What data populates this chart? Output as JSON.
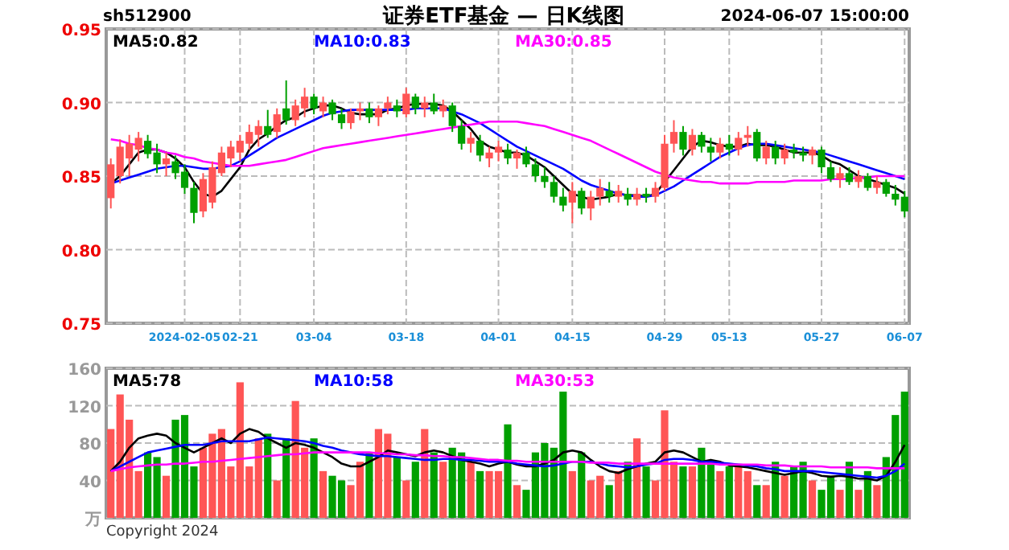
{
  "chart_data": [
    {
      "type": "candlestick",
      "title": "证券ETF基金 — 日K线图",
      "annotations": [
        "sh512900",
        "2024-06-07 15:00:00"
      ],
      "categories": [
        null,
        null,
        null,
        null,
        null,
        null,
        null,
        null,
        "2024-02-05",
        null,
        null,
        null,
        null,
        null,
        "02-21",
        null,
        null,
        null,
        null,
        null,
        null,
        null,
        "03-04",
        null,
        null,
        null,
        null,
        null,
        null,
        null,
        null,
        null,
        "03-18",
        null,
        null,
        null,
        null,
        null,
        null,
        null,
        null,
        null,
        "04-01",
        null,
        null,
        null,
        null,
        null,
        null,
        null,
        "04-15",
        null,
        null,
        null,
        null,
        null,
        null,
        null,
        null,
        null,
        "04-29",
        null,
        null,
        null,
        null,
        null,
        null,
        "05-13",
        null,
        null,
        null,
        null,
        null,
        null,
        null,
        null,
        null,
        "05-27",
        null,
        null,
        null,
        null,
        null,
        null,
        null,
        null,
        "06-07"
      ],
      "ohlc": [
        [
          0.835,
          0.862,
          0.828,
          0.858
        ],
        [
          0.85,
          0.875,
          0.845,
          0.87
        ],
        [
          0.862,
          0.878,
          0.85,
          0.872
        ],
        [
          0.868,
          0.88,
          0.86,
          0.876
        ],
        [
          0.874,
          0.878,
          0.862,
          0.865
        ],
        [
          0.866,
          0.872,
          0.852,
          0.858
        ],
        [
          0.858,
          0.866,
          0.85,
          0.862
        ],
        [
          0.86,
          0.864,
          0.848,
          0.852
        ],
        [
          0.853,
          0.858,
          0.838,
          0.842
        ],
        [
          0.842,
          0.846,
          0.818,
          0.825
        ],
        [
          0.826,
          0.852,
          0.822,
          0.848
        ],
        [
          0.832,
          0.86,
          0.828,
          0.856
        ],
        [
          0.852,
          0.87,
          0.85,
          0.866
        ],
        [
          0.862,
          0.874,
          0.856,
          0.87
        ],
        [
          0.866,
          0.878,
          0.86,
          0.874
        ],
        [
          0.872,
          0.885,
          0.868,
          0.88
        ],
        [
          0.878,
          0.888,
          0.87,
          0.884
        ],
        [
          0.884,
          0.895,
          0.876,
          0.878
        ],
        [
          0.88,
          0.896,
          0.876,
          0.892
        ],
        [
          0.896,
          0.915,
          0.885,
          0.888
        ],
        [
          0.888,
          0.902,
          0.884,
          0.898
        ],
        [
          0.896,
          0.91,
          0.89,
          0.904
        ],
        [
          0.904,
          0.906,
          0.892,
          0.896
        ],
        [
          0.894,
          0.904,
          0.89,
          0.9
        ],
        [
          0.9,
          0.902,
          0.888,
          0.892
        ],
        [
          0.892,
          0.896,
          0.882,
          0.886
        ],
        [
          0.886,
          0.896,
          0.882,
          0.894
        ],
        [
          0.894,
          0.9,
          0.888,
          0.896
        ],
        [
          0.896,
          0.9,
          0.886,
          0.89
        ],
        [
          0.89,
          0.898,
          0.884,
          0.896
        ],
        [
          0.896,
          0.904,
          0.892,
          0.9
        ],
        [
          0.898,
          0.902,
          0.89,
          0.894
        ],
        [
          0.892,
          0.91,
          0.89,
          0.906
        ],
        [
          0.904,
          0.906,
          0.892,
          0.896
        ],
        [
          0.896,
          0.904,
          0.89,
          0.9
        ],
        [
          0.9,
          0.906,
          0.892,
          0.894
        ],
        [
          0.894,
          0.902,
          0.89,
          0.898
        ],
        [
          0.898,
          0.9,
          0.88,
          0.884
        ],
        [
          0.884,
          0.888,
          0.868,
          0.872
        ],
        [
          0.872,
          0.88,
          0.866,
          0.876
        ],
        [
          0.874,
          0.878,
          0.86,
          0.864
        ],
        [
          0.862,
          0.87,
          0.856,
          0.866
        ],
        [
          0.866,
          0.874,
          0.86,
          0.87
        ],
        [
          0.868,
          0.872,
          0.858,
          0.862
        ],
        [
          0.862,
          0.868,
          0.855,
          0.866
        ],
        [
          0.866,
          0.87,
          0.856,
          0.858
        ],
        [
          0.858,
          0.862,
          0.846,
          0.85
        ],
        [
          0.85,
          0.856,
          0.842,
          0.846
        ],
        [
          0.846,
          0.85,
          0.832,
          0.836
        ],
        [
          0.836,
          0.842,
          0.826,
          0.83
        ],
        [
          0.832,
          0.846,
          0.818,
          0.84
        ],
        [
          0.84,
          0.842,
          0.824,
          0.828
        ],
        [
          0.828,
          0.84,
          0.82,
          0.836
        ],
        [
          0.836,
          0.848,
          0.83,
          0.842
        ],
        [
          0.84,
          0.846,
          0.832,
          0.836
        ],
        [
          0.836,
          0.844,
          0.832,
          0.84
        ],
        [
          0.838,
          0.842,
          0.83,
          0.834
        ],
        [
          0.834,
          0.842,
          0.83,
          0.838
        ],
        [
          0.838,
          0.842,
          0.832,
          0.836
        ],
        [
          0.836,
          0.846,
          0.832,
          0.842
        ],
        [
          0.842,
          0.878,
          0.84,
          0.872
        ],
        [
          0.872,
          0.888,
          0.866,
          0.88
        ],
        [
          0.88,
          0.884,
          0.864,
          0.868
        ],
        [
          0.868,
          0.882,
          0.864,
          0.878
        ],
        [
          0.878,
          0.88,
          0.866,
          0.87
        ],
        [
          0.87,
          0.876,
          0.86,
          0.866
        ],
        [
          0.866,
          0.876,
          0.862,
          0.872
        ],
        [
          0.872,
          0.878,
          0.864,
          0.868
        ],
        [
          0.868,
          0.88,
          0.864,
          0.876
        ],
        [
          0.876,
          0.884,
          0.87,
          0.878
        ],
        [
          0.88,
          0.882,
          0.86,
          0.862
        ],
        [
          0.862,
          0.874,
          0.858,
          0.87
        ],
        [
          0.87,
          0.874,
          0.858,
          0.862
        ],
        [
          0.862,
          0.872,
          0.858,
          0.868
        ],
        [
          0.868,
          0.872,
          0.862,
          0.866
        ],
        [
          0.866,
          0.87,
          0.86,
          0.864
        ],
        [
          0.864,
          0.87,
          0.858,
          0.868
        ],
        [
          0.868,
          0.87,
          0.852,
          0.856
        ],
        [
          0.856,
          0.86,
          0.846,
          0.848
        ],
        [
          0.848,
          0.856,
          0.842,
          0.852
        ],
        [
          0.852,
          0.856,
          0.844,
          0.846
        ],
        [
          0.846,
          0.854,
          0.842,
          0.85
        ],
        [
          0.85,
          0.852,
          0.84,
          0.842
        ],
        [
          0.842,
          0.85,
          0.838,
          0.846
        ],
        [
          0.846,
          0.848,
          0.836,
          0.838
        ],
        [
          0.838,
          0.844,
          0.83,
          0.834
        ],
        [
          0.836,
          0.84,
          0.822,
          0.826
        ]
      ],
      "colors": [
        "#ff5555",
        "#ff5555",
        "#ff5555",
        "#ff5555",
        "#00a000",
        "#00a000",
        "#ff5555",
        "#00a000",
        "#00a000",
        "#00a000",
        "#ff5555",
        "#ff5555",
        "#ff5555",
        "#ff5555",
        "#ff5555",
        "#ff5555",
        "#ff5555",
        "#00a000",
        "#ff5555",
        "#00a000",
        "#ff5555",
        "#ff5555",
        "#00a000",
        "#ff5555",
        "#00a000",
        "#00a000",
        "#ff5555",
        "#ff5555",
        "#00a000",
        "#ff5555",
        "#ff5555",
        "#00a000",
        "#ff5555",
        "#00a000",
        "#ff5555",
        "#00a000",
        "#ff5555",
        "#00a000",
        "#00a000",
        "#ff5555",
        "#00a000",
        "#ff5555",
        "#ff5555",
        "#00a000",
        "#ff5555",
        "#00a000",
        "#00a000",
        "#00a000",
        "#00a000",
        "#00a000",
        "#ff5555",
        "#00a000",
        "#ff5555",
        "#ff5555",
        "#00a000",
        "#ff5555",
        "#00a000",
        "#ff5555",
        "#00a000",
        "#ff5555",
        "#ff5555",
        "#ff5555",
        "#00a000",
        "#ff5555",
        "#00a000",
        "#00a000",
        "#ff5555",
        "#00a000",
        "#ff5555",
        "#ff5555",
        "#00a000",
        "#ff5555",
        "#00a000",
        "#ff5555",
        "#00a000",
        "#00a000",
        "#ff5555",
        "#00a000",
        "#00a000",
        "#ff5555",
        "#00a000",
        "#ff5555",
        "#00a000",
        "#ff5555",
        "#00a000",
        "#00a000",
        "#00a000"
      ],
      "series": [
        {
          "type": "line",
          "name": "MA5:0.82",
          "color": "#000000",
          "values": [
            0.845,
            0.85,
            0.858,
            0.866,
            0.868,
            0.868,
            0.866,
            0.862,
            0.856,
            0.846,
            0.838,
            0.836,
            0.84,
            0.848,
            0.856,
            0.868,
            0.875,
            0.879,
            0.884,
            0.888,
            0.89,
            0.894,
            0.896,
            0.898,
            0.898,
            0.896,
            0.893,
            0.892,
            0.892,
            0.892,
            0.895,
            0.896,
            0.898,
            0.899,
            0.899,
            0.899,
            0.898,
            0.894,
            0.888,
            0.882,
            0.874,
            0.87,
            0.868,
            0.866,
            0.866,
            0.864,
            0.86,
            0.856,
            0.85,
            0.844,
            0.838,
            0.836,
            0.834,
            0.835,
            0.836,
            0.838,
            0.837,
            0.837,
            0.836,
            0.838,
            0.846,
            0.854,
            0.862,
            0.87,
            0.874,
            0.873,
            0.871,
            0.87,
            0.87,
            0.872,
            0.871,
            0.871,
            0.87,
            0.868,
            0.866,
            0.866,
            0.866,
            0.864,
            0.86,
            0.858,
            0.854,
            0.85,
            0.848,
            0.846,
            0.844,
            0.842,
            0.838
          ]
        },
        {
          "type": "line",
          "name": "MA10:0.83",
          "color": "#0000ff",
          "values": [
            0.845,
            0.847,
            0.849,
            0.851,
            0.853,
            0.855,
            0.856,
            0.857,
            0.857,
            0.856,
            0.855,
            0.855,
            0.856,
            0.857,
            0.86,
            0.864,
            0.868,
            0.872,
            0.876,
            0.879,
            0.882,
            0.885,
            0.888,
            0.891,
            0.893,
            0.894,
            0.895,
            0.895,
            0.895,
            0.895,
            0.895,
            0.895,
            0.895,
            0.896,
            0.896,
            0.896,
            0.896,
            0.894,
            0.892,
            0.889,
            0.886,
            0.882,
            0.878,
            0.874,
            0.87,
            0.867,
            0.864,
            0.861,
            0.858,
            0.855,
            0.851,
            0.847,
            0.844,
            0.842,
            0.84,
            0.838,
            0.837,
            0.836,
            0.836,
            0.837,
            0.84,
            0.843,
            0.847,
            0.851,
            0.855,
            0.859,
            0.863,
            0.866,
            0.869,
            0.871,
            0.872,
            0.872,
            0.871,
            0.87,
            0.869,
            0.868,
            0.867,
            0.866,
            0.864,
            0.862,
            0.86,
            0.858,
            0.856,
            0.854,
            0.852,
            0.85,
            0.848
          ]
        },
        {
          "type": "line",
          "name": "MA30:0.85",
          "color": "#ff00ff",
          "values": [
            0.875,
            0.874,
            0.872,
            0.871,
            0.869,
            0.868,
            0.866,
            0.865,
            0.863,
            0.862,
            0.86,
            0.859,
            0.858,
            0.857,
            0.857,
            0.857,
            0.858,
            0.859,
            0.86,
            0.861,
            0.863,
            0.865,
            0.867,
            0.869,
            0.87,
            0.871,
            0.872,
            0.873,
            0.874,
            0.875,
            0.876,
            0.877,
            0.878,
            0.879,
            0.88,
            0.881,
            0.882,
            0.883,
            0.884,
            0.885,
            0.886,
            0.887,
            0.887,
            0.887,
            0.887,
            0.886,
            0.885,
            0.884,
            0.882,
            0.88,
            0.878,
            0.876,
            0.874,
            0.871,
            0.868,
            0.865,
            0.862,
            0.859,
            0.856,
            0.853,
            0.851,
            0.849,
            0.848,
            0.847,
            0.846,
            0.846,
            0.845,
            0.845,
            0.845,
            0.845,
            0.846,
            0.846,
            0.846,
            0.846,
            0.847,
            0.847,
            0.847,
            0.847,
            0.848,
            0.848,
            0.848,
            0.849,
            0.849,
            0.85,
            0.85,
            0.85,
            0.85
          ]
        }
      ],
      "ylim": [
        0.75,
        0.95
      ],
      "yticks": [
        {
          "value": 0.75,
          "label": "0.75"
        },
        {
          "value": 0.8,
          "label": "0.80"
        },
        {
          "value": 0.85,
          "label": "0.85"
        },
        {
          "value": 0.9,
          "label": "0.90"
        },
        {
          "value": 0.95,
          "label": "0.95"
        }
      ],
      "grid": true,
      "legend": "top"
    },
    {
      "type": "bar",
      "annotations": [
        "Copyright 2024"
      ],
      "tick_labels": "y",
      "categories": [
        null,
        null,
        null,
        null,
        null,
        null,
        null,
        null,
        null,
        null,
        null,
        null,
        null,
        null,
        null,
        null,
        null,
        null,
        null,
        null,
        null,
        null,
        null,
        null,
        null,
        null,
        null,
        null,
        null,
        null,
        null,
        null,
        null,
        null,
        null,
        null,
        null,
        null,
        null,
        null,
        null,
        null,
        null,
        null,
        null,
        null,
        null,
        null,
        null,
        null,
        null,
        null,
        null,
        null,
        null,
        null,
        null,
        null,
        null,
        null,
        null,
        null,
        null,
        null,
        null,
        null,
        null,
        null,
        null,
        null,
        null,
        null,
        null,
        null,
        null,
        null,
        null,
        null,
        null,
        null,
        null,
        null,
        null,
        null,
        null,
        null,
        null
      ],
      "series": [
        {
          "values": [
            95,
            132,
            105,
            50,
            70,
            65,
            45,
            105,
            110,
            55,
            75,
            90,
            95,
            55,
            145,
            55,
            85,
            90,
            40,
            85,
            125,
            75,
            85,
            50,
            45,
            40,
            35,
            60,
            70,
            95,
            90,
            65,
            40,
            60,
            95,
            70,
            60,
            75,
            70,
            60,
            50,
            50,
            50,
            100,
            35,
            30,
            70,
            80,
            75,
            135,
            50,
            70,
            40,
            45,
            35,
            50,
            60,
            85,
            55,
            40,
            115,
            60,
            55,
            55,
            75,
            60,
            50,
            55,
            55,
            50,
            35,
            35,
            60,
            45,
            55,
            60,
            40,
            30,
            45,
            30,
            60,
            30,
            50,
            35,
            65,
            110,
            135
          ],
          "colors": [
            "#ff5555",
            "#ff5555",
            "#ff5555",
            "#ff5555",
            "#00a000",
            "#00a000",
            "#ff5555",
            "#00a000",
            "#00a000",
            "#00a000",
            "#ff5555",
            "#ff5555",
            "#ff5555",
            "#ff5555",
            "#ff5555",
            "#ff5555",
            "#ff5555",
            "#00a000",
            "#ff5555",
            "#00a000",
            "#ff5555",
            "#ff5555",
            "#00a000",
            "#ff5555",
            "#00a000",
            "#00a000",
            "#ff5555",
            "#ff5555",
            "#00a000",
            "#ff5555",
            "#ff5555",
            "#00a000",
            "#ff5555",
            "#00a000",
            "#ff5555",
            "#00a000",
            "#ff5555",
            "#00a000",
            "#00a000",
            "#ff5555",
            "#00a000",
            "#ff5555",
            "#ff5555",
            "#00a000",
            "#ff5555",
            "#00a000",
            "#00a000",
            "#00a000",
            "#00a000",
            "#00a000",
            "#ff5555",
            "#00a000",
            "#ff5555",
            "#ff5555",
            "#00a000",
            "#ff5555",
            "#00a000",
            "#ff5555",
            "#00a000",
            "#ff5555",
            "#ff5555",
            "#ff5555",
            "#00a000",
            "#ff5555",
            "#00a000",
            "#00a000",
            "#ff5555",
            "#00a000",
            "#ff5555",
            "#ff5555",
            "#00a000",
            "#ff5555",
            "#00a000",
            "#ff5555",
            "#00a000",
            "#00a000",
            "#ff5555",
            "#00a000",
            "#00a000",
            "#ff5555",
            "#00a000",
            "#ff5555",
            "#00a000",
            "#ff5555",
            "#00a000",
            "#00a000",
            "#00a000"
          ]
        },
        {
          "type": "line",
          "name": "MA5:78",
          "color": "#000000",
          "values": [
            50,
            60,
            75,
            85,
            88,
            90,
            88,
            80,
            75,
            70,
            75,
            80,
            85,
            80,
            90,
            95,
            92,
            85,
            80,
            75,
            80,
            78,
            75,
            70,
            65,
            58,
            55,
            55,
            60,
            65,
            72,
            70,
            68,
            66,
            70,
            72,
            70,
            66,
            62,
            60,
            58,
            55,
            58,
            60,
            57,
            55,
            55,
            58,
            62,
            70,
            72,
            70,
            62,
            55,
            50,
            48,
            52,
            55,
            58,
            60,
            70,
            72,
            70,
            65,
            60,
            62,
            60,
            56,
            55,
            54,
            52,
            50,
            48,
            46,
            48,
            50,
            48,
            45,
            44,
            45,
            44,
            42,
            42,
            40,
            45,
            60,
            78
          ]
        },
        {
          "type": "line",
          "name": "MA10:58",
          "color": "#0000ff",
          "values": [
            50,
            55,
            60,
            65,
            70,
            72,
            74,
            76,
            78,
            78,
            78,
            80,
            82,
            82,
            82,
            82,
            84,
            86,
            85,
            84,
            83,
            82,
            80,
            77,
            75,
            72,
            70,
            68,
            67,
            66,
            66,
            65,
            64,
            63,
            62,
            62,
            63,
            63,
            62,
            62,
            61,
            60,
            60,
            60,
            58,
            57,
            56,
            55,
            56,
            58,
            60,
            60,
            60,
            58,
            56,
            55,
            54,
            55,
            57,
            58,
            62,
            63,
            63,
            62,
            60,
            60,
            59,
            58,
            57,
            56,
            55,
            53,
            52,
            50,
            50,
            50,
            50,
            49,
            48,
            47,
            46,
            45,
            44,
            43,
            45,
            50,
            58
          ]
        },
        {
          "type": "line",
          "name": "MA30:53",
          "color": "#ff00ff",
          "values": [
            50,
            52,
            54,
            55,
            56,
            57,
            57,
            58,
            58,
            59,
            60,
            60,
            61,
            62,
            63,
            64,
            65,
            66,
            67,
            68,
            68,
            69,
            70,
            70,
            70,
            70,
            70,
            70,
            70,
            69,
            69,
            68,
            68,
            67,
            67,
            66,
            66,
            65,
            65,
            64,
            63,
            62,
            62,
            61,
            61,
            60,
            60,
            60,
            60,
            60,
            60,
            60,
            59,
            59,
            59,
            58,
            58,
            58,
            58,
            58,
            58,
            58,
            58,
            58,
            58,
            58,
            57,
            57,
            57,
            57,
            57,
            56,
            56,
            56,
            55,
            55,
            55,
            55,
            54,
            54,
            54,
            54,
            54,
            53,
            53,
            53,
            53
          ]
        }
      ],
      "ylim": [
        0,
        160
      ],
      "yticks": [
        {
          "value": 0,
          "label": "万"
        },
        40,
        80,
        120,
        160
      ],
      "grid": true,
      "legend": "top"
    }
  ]
}
